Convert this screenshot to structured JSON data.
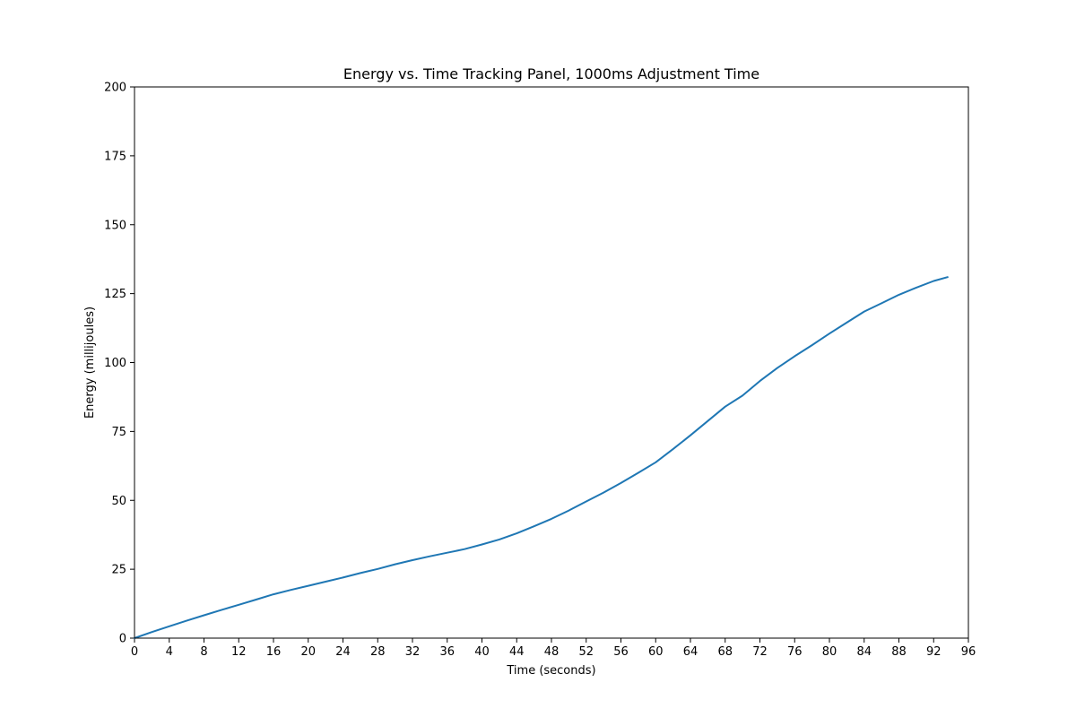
{
  "chart_data": {
    "type": "line",
    "title": "Energy vs. Time Tracking Panel, 1000ms Adjustment Time",
    "xlabel": "Time (seconds)",
    "ylabel": "Energy (millijoules)",
    "xlim": [
      0,
      96
    ],
    "ylim": [
      0,
      200
    ],
    "xticks": [
      0,
      4,
      8,
      12,
      16,
      20,
      24,
      28,
      32,
      36,
      40,
      44,
      48,
      52,
      56,
      60,
      64,
      68,
      72,
      76,
      80,
      84,
      88,
      92,
      96
    ],
    "yticks": [
      0,
      25,
      50,
      75,
      100,
      125,
      150,
      175,
      200
    ],
    "grid": false,
    "series": [
      {
        "color": "#1f77b4",
        "x": [
          0,
          2,
          4,
          6,
          8,
          10,
          12,
          14,
          16,
          18,
          20,
          22,
          24,
          26,
          28,
          30,
          32,
          34,
          36,
          38,
          40,
          42,
          44,
          46,
          48,
          50,
          52,
          54,
          56,
          58,
          60,
          62,
          64,
          66,
          68,
          70,
          72,
          74,
          76,
          78,
          80,
          82,
          84,
          86,
          88,
          90,
          92,
          93.6
        ],
        "y": [
          0,
          2.2,
          4.3,
          6.3,
          8.3,
          10.2,
          12.1,
          14.0,
          15.9,
          17.5,
          19.0,
          20.5,
          22.0,
          23.6,
          25.1,
          26.8,
          28.3,
          29.7,
          31.0,
          32.3,
          34.0,
          35.8,
          38.0,
          40.6,
          43.3,
          46.3,
          49.6,
          52.8,
          56.3,
          60.0,
          63.8,
          68.6,
          73.6,
          78.8,
          84.0,
          88.0,
          93.3,
          98.0,
          102.3,
          106.3,
          110.5,
          114.5,
          118.5,
          121.5,
          124.6,
          127.2,
          129.6,
          131.0
        ]
      }
    ]
  }
}
